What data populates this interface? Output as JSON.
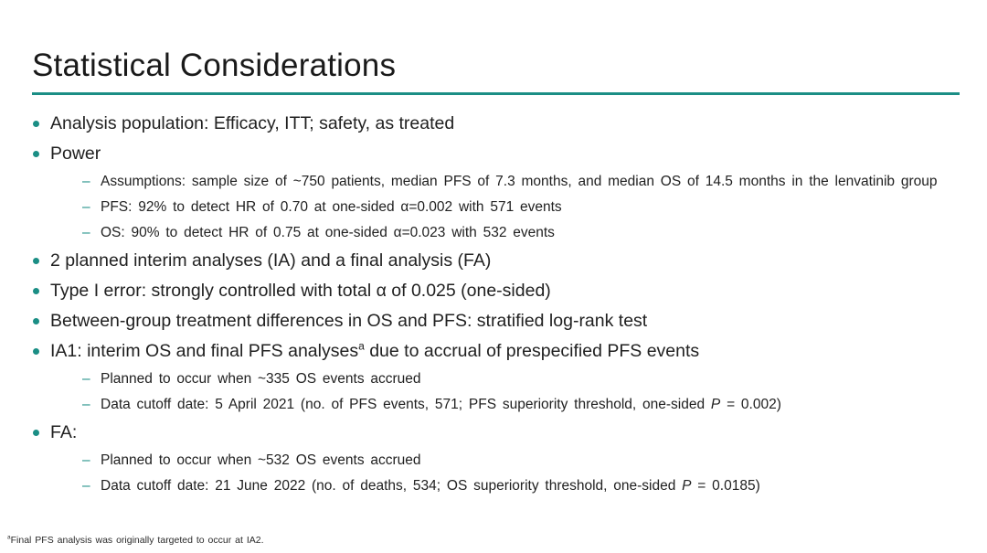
{
  "slide": {
    "title": "Statistical Considerations",
    "accent_color": "#1b8e85",
    "text_color": "#212121"
  },
  "bullets": {
    "analysis_population": "Analysis population: Efficacy, ITT; safety, as treated",
    "power": "Power",
    "assumptions": "Assumptions: sample size of ~750 patients, median PFS of 7.3 months, and median OS of 14.5 months in the lenvatinib group",
    "pfs_power": "PFS: 92% to detect HR of 0.70 at one-sided α=0.002 with 571 events",
    "os_power": "OS: 90% to detect HR of 0.75 at one-sided α=0.023 with 532 events",
    "interim_analyses": "2 planned interim analyses (IA) and a final analysis (FA)",
    "type_i_error": "Type I error: strongly controlled with total α of 0.025 (one-sided)",
    "between_group": "Between-group treatment differences in OS and PFS: stratified log-rank test",
    "ia1": {
      "before_sup": "IA1: interim OS and final PFS analyses",
      "sup": "a",
      "after_sup": " due to accrual of prespecified PFS events"
    },
    "ia1_planned": "Planned to occur when ~335 OS events accrued",
    "ia1_cutoff": {
      "before_p": "Data cutoff date: 5 April 2021 (no. of PFS events, 571; PFS superiority threshold, one-sided ",
      "p": "P",
      "after_p": " = 0.002)"
    },
    "fa": "FA:",
    "fa_planned": "Planned to occur when ~532 OS events accrued",
    "fa_cutoff": {
      "before_p": "Data cutoff date: 21 June 2022 (no. of deaths, 534; OS superiority threshold, one-sided ",
      "p": "P",
      "after_p": " = 0.0185)"
    }
  },
  "footnote": {
    "sup": "a",
    "text": "Final PFS analysis was originally targeted to occur at IA2."
  }
}
